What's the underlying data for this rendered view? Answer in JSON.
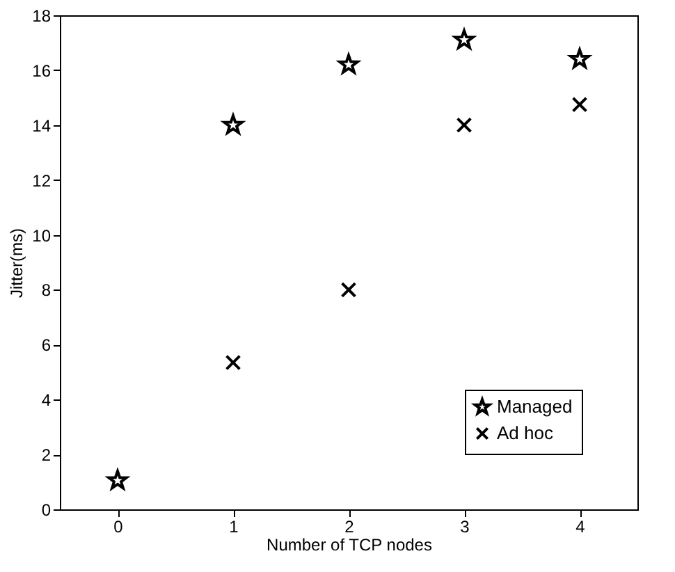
{
  "chart_data": {
    "type": "scatter",
    "xlabel": "Number of TCP nodes",
    "ylabel": "Jitter(ms)",
    "x": [
      0,
      1,
      2,
      3,
      4
    ],
    "series": [
      {
        "name": "Managed",
        "color": "#000000",
        "marker": "star",
        "values": [
          1.05,
          14.0,
          16.2,
          17.1,
          16.4
        ]
      },
      {
        "name": "Ad hoc",
        "color": "#000000",
        "marker": "cross",
        "values": [
          null,
          5.35,
          8.0,
          14.0,
          14.75
        ]
      }
    ],
    "xlim": [
      -0.5,
      4.5
    ],
    "xticks": [
      0,
      1,
      2,
      3,
      4
    ],
    "ylim": [
      0,
      18
    ],
    "yticks": [
      0,
      2,
      4,
      6,
      8,
      10,
      12,
      14,
      16,
      18
    ],
    "grid": false,
    "legend": "bottom right"
  }
}
